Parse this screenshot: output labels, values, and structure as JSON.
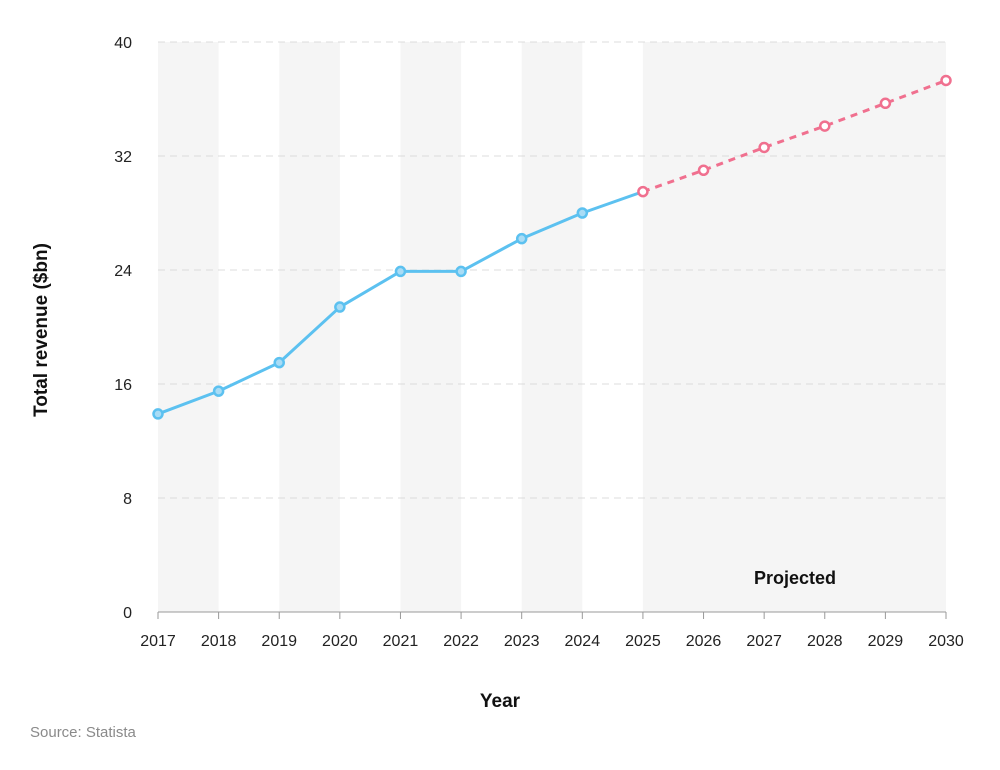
{
  "chart_data": {
    "type": "line",
    "title": "",
    "xlabel": "Year",
    "ylabel": "Total revenue ($bn)",
    "ylim": [
      0,
      40
    ],
    "yticks": [
      0,
      8,
      16,
      24,
      32,
      40
    ],
    "grid": true,
    "x": [
      "2017",
      "2018",
      "2019",
      "2020",
      "2021",
      "2022",
      "2023",
      "2024",
      "2025",
      "2026",
      "2027",
      "2028",
      "2029",
      "2030"
    ],
    "series": [
      {
        "style": "solid",
        "color": "#5cc1f0",
        "x": [
          "2017",
          "2018",
          "2019",
          "2020",
          "2021",
          "2022",
          "2023",
          "2024",
          "2025"
        ],
        "values": [
          13.9,
          15.5,
          17.5,
          21.4,
          23.9,
          23.9,
          26.2,
          28.0,
          29.5
        ]
      },
      {
        "style": "dashed",
        "color": "#f0708f",
        "x": [
          "2025",
          "2026",
          "2027",
          "2028",
          "2029",
          "2030"
        ],
        "values": [
          29.5,
          31.0,
          32.6,
          34.1,
          35.7,
          37.3
        ]
      }
    ],
    "annotations": [
      {
        "text": "Projected",
        "region": [
          "2025",
          "2030"
        ]
      }
    ]
  },
  "source": "Source: Statista"
}
